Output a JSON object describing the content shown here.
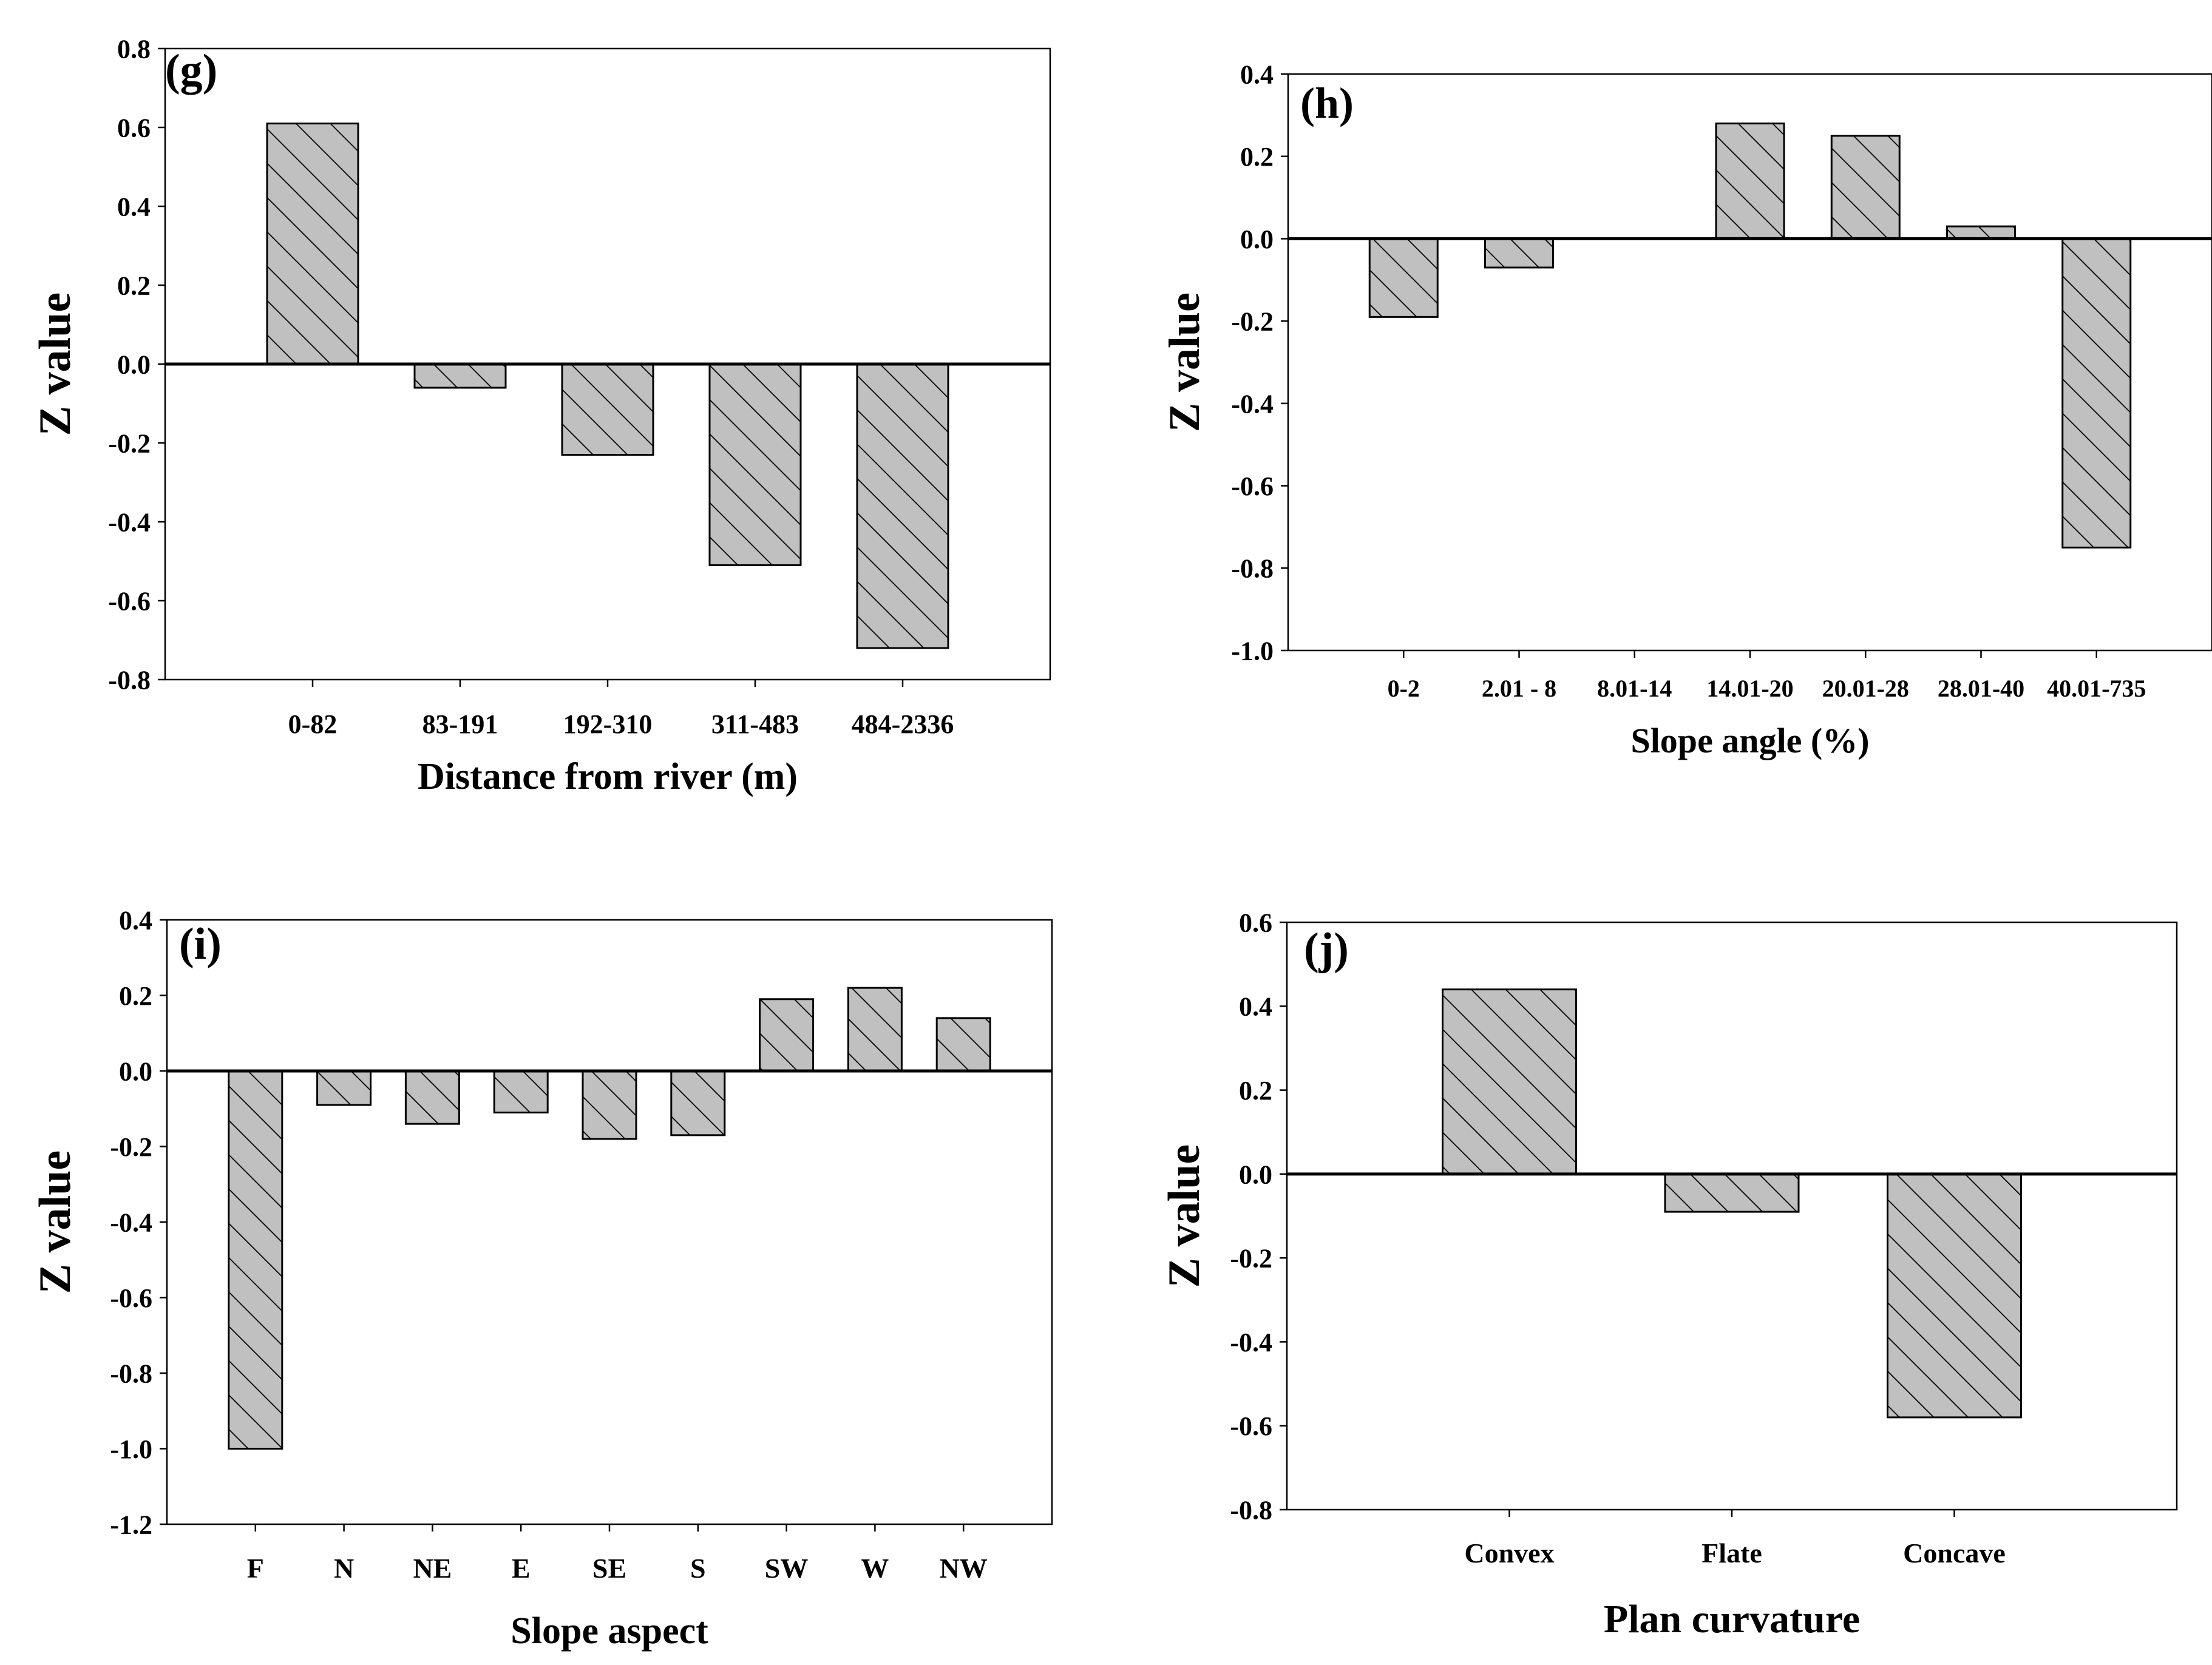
{
  "colors": {
    "bar_fill": "#c0c0c0",
    "hatch": "#000000",
    "axis": "#000000",
    "background": "#ffffff"
  },
  "chart_data": [
    {
      "type": "bar",
      "panel_label": "(g)",
      "categories": [
        "0-82",
        "83-191",
        "192-310",
        "311-483",
        "484-2336"
      ],
      "values": [
        0.61,
        -0.06,
        -0.23,
        -0.51,
        -0.72
      ],
      "xlabel": "Distance from river (m)",
      "ylabel": "Z value",
      "ylim": [
        -0.8,
        0.8
      ],
      "yticks": [
        "0.8",
        "0.6",
        "0.4",
        "0.2",
        "0.0",
        "-0.2",
        "-0.4",
        "-0.6",
        "-0.8"
      ],
      "yticks_values": [
        0.8,
        0.6,
        0.4,
        0.2,
        0.0,
        -0.2,
        -0.4,
        -0.6,
        -0.8
      ],
      "grid": false
    },
    {
      "type": "bar",
      "panel_label": "(h)",
      "categories": [
        "0-2",
        "2.01 - 8",
        "8.01-14",
        "14.01-20",
        "20.01-28",
        "28.01-40",
        "40.01-735"
      ],
      "values": [
        -0.19,
        -0.07,
        0.0,
        0.28,
        0.25,
        0.03,
        -0.75
      ],
      "xlabel": "Slope angle (%)",
      "ylabel": "Z value",
      "ylim": [
        -1.0,
        0.4
      ],
      "yticks": [
        "0.4",
        "0.2",
        "0.0",
        "-0.2",
        "-0.4",
        "-0.6",
        "-0.8",
        "-1.0"
      ],
      "yticks_values": [
        0.4,
        0.2,
        0.0,
        -0.2,
        -0.4,
        -0.6,
        -0.8,
        -1.0
      ],
      "grid": false
    },
    {
      "type": "bar",
      "panel_label": "(i)",
      "categories": [
        "F",
        "N",
        "NE",
        "E",
        "SE",
        "S",
        "SW",
        "W",
        "NW"
      ],
      "values": [
        -1.0,
        -0.09,
        -0.14,
        -0.11,
        -0.18,
        -0.17,
        0.19,
        0.22,
        0.14
      ],
      "xlabel": "Slope aspect",
      "ylabel": "Z value",
      "ylim": [
        -1.2,
        0.4
      ],
      "yticks": [
        "0.4",
        "0.2",
        "0.0",
        "-0.2",
        "-0.4",
        "-0.6",
        "-0.8",
        "-1.0",
        "-1.2"
      ],
      "yticks_values": [
        0.4,
        0.2,
        0.0,
        -0.2,
        -0.4,
        -0.6,
        -0.8,
        -1.0,
        -1.2
      ],
      "grid": false
    },
    {
      "type": "bar",
      "panel_label": "(j)",
      "categories": [
        "Convex",
        "Flate",
        "Concave"
      ],
      "values": [
        0.44,
        -0.09,
        -0.58
      ],
      "xlabel": "Plan curvature",
      "ylabel": "Z value",
      "ylim": [
        -0.8,
        0.6
      ],
      "yticks": [
        "0.6",
        "0.4",
        "0.2",
        "0.0",
        "-0.2",
        "-0.4",
        "-0.6",
        "-0.8"
      ],
      "yticks_values": [
        0.6,
        0.4,
        0.2,
        0.0,
        -0.2,
        -0.4,
        -0.6,
        -0.8
      ],
      "grid": false
    }
  ]
}
